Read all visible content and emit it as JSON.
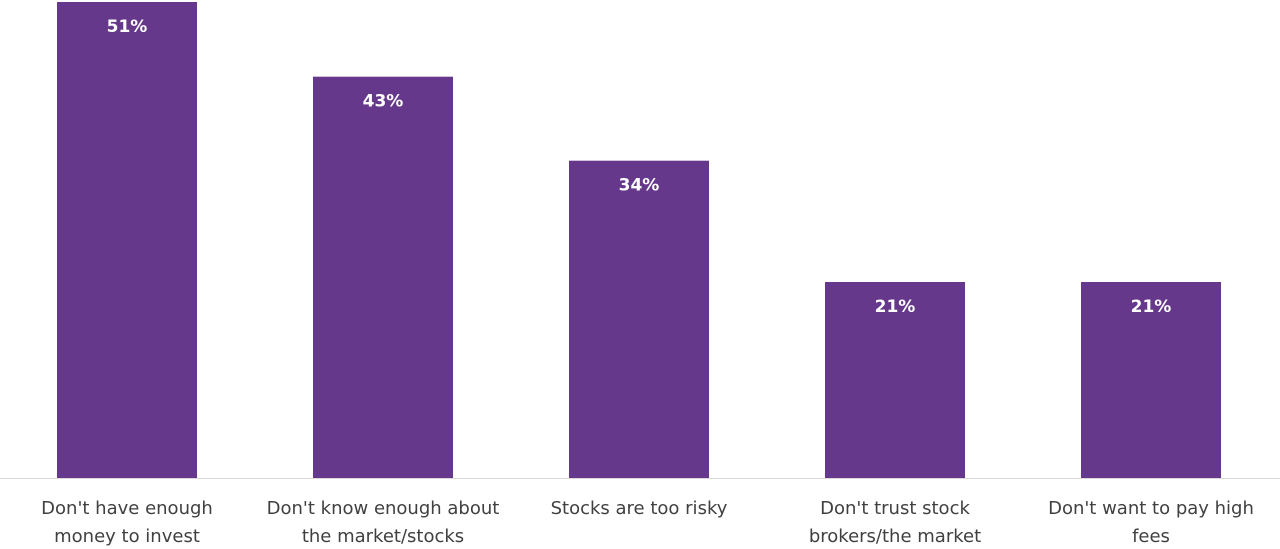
{
  "chart_data": {
    "type": "bar",
    "categories": [
      [
        "Don't have enough",
        "money to invest"
      ],
      [
        "Don't know enough about",
        "the market/stocks"
      ],
      [
        "Stocks are too risky"
      ],
      [
        "Don't trust stock",
        "brokers/the market"
      ],
      [
        "Don't want to pay high",
        "fees"
      ]
    ],
    "values": [
      51,
      43,
      34,
      21,
      21
    ],
    "data_labels": [
      "51%",
      "43%",
      "34%",
      "21%",
      "21%"
    ],
    "ylim": [
      0,
      51
    ],
    "grid": false,
    "legend": "none",
    "colors": {
      "bar": "#66388c",
      "data_label": "#ffffff",
      "axis_line": "#d9d9d9",
      "category_label": "#404040"
    }
  }
}
